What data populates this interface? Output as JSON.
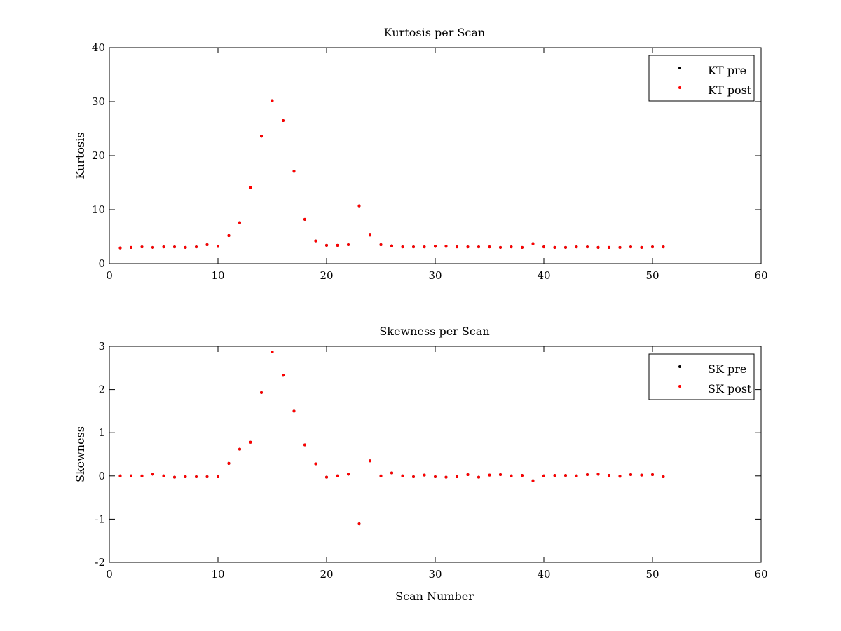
{
  "colors": {
    "pre": "#000000",
    "post": "#ff0000",
    "axes": "#000000",
    "background": "#ffffff"
  },
  "chart_data": [
    {
      "type": "scatter",
      "title": "Kurtosis per Scan",
      "xlabel": "",
      "ylabel": "Kurtosis",
      "xlim": [
        0,
        60
      ],
      "ylim": [
        0,
        40
      ],
      "xticks": [
        0,
        10,
        20,
        30,
        40,
        50,
        60
      ],
      "yticks": [
        0,
        10,
        20,
        30,
        40
      ],
      "grid": false,
      "legend_position": "top-right",
      "legend": [
        "KT pre",
        "KT post"
      ],
      "x": [
        1,
        2,
        3,
        4,
        5,
        6,
        7,
        8,
        9,
        10,
        11,
        12,
        13,
        14,
        15,
        16,
        17,
        18,
        19,
        20,
        21,
        22,
        23,
        24,
        25,
        26,
        27,
        28,
        29,
        30,
        31,
        32,
        33,
        34,
        35,
        36,
        37,
        38,
        39,
        40,
        41,
        42,
        43,
        44,
        45,
        46,
        47,
        48,
        49,
        50,
        51
      ],
      "series": [
        {
          "name": "KT pre",
          "values": [
            2.9,
            3.0,
            3.1,
            3.0,
            3.1,
            3.1,
            3.0,
            3.1,
            3.5,
            3.2,
            5.2,
            7.6,
            14.1,
            23.6,
            30.2,
            26.5,
            17.1,
            8.2,
            4.2,
            3.4,
            3.4,
            3.5,
            10.7,
            5.3,
            3.5,
            3.3,
            3.1,
            3.1,
            3.1,
            3.2,
            3.2,
            3.1,
            3.1,
            3.1,
            3.1,
            3.0,
            3.1,
            3.0,
            3.7,
            3.1,
            3.0,
            3.0,
            3.1,
            3.1,
            3.0,
            3.0,
            3.0,
            3.1,
            3.0,
            3.1,
            3.1
          ]
        },
        {
          "name": "KT post",
          "values": [
            2.9,
            3.0,
            3.1,
            3.0,
            3.1,
            3.1,
            3.0,
            3.1,
            3.5,
            3.2,
            5.2,
            7.6,
            14.1,
            23.6,
            30.2,
            26.5,
            17.1,
            8.2,
            4.2,
            3.4,
            3.4,
            3.5,
            10.7,
            5.3,
            3.5,
            3.3,
            3.1,
            3.1,
            3.1,
            3.2,
            3.2,
            3.1,
            3.1,
            3.1,
            3.1,
            3.0,
            3.1,
            3.0,
            3.7,
            3.1,
            3.0,
            3.0,
            3.1,
            3.1,
            3.0,
            3.0,
            3.0,
            3.1,
            3.0,
            3.1,
            3.1
          ]
        }
      ]
    },
    {
      "type": "scatter",
      "title": "Skewness per Scan",
      "xlabel": "Scan Number",
      "ylabel": "Skewness",
      "xlim": [
        0,
        60
      ],
      "ylim": [
        -2,
        3
      ],
      "xticks": [
        0,
        10,
        20,
        30,
        40,
        50,
        60
      ],
      "yticks": [
        -2,
        -1,
        0,
        1,
        2,
        3
      ],
      "grid": false,
      "legend_position": "top-right",
      "legend": [
        "SK pre",
        "SK post"
      ],
      "x": [
        1,
        2,
        3,
        4,
        5,
        6,
        7,
        8,
        9,
        10,
        11,
        12,
        13,
        14,
        15,
        16,
        17,
        18,
        19,
        20,
        21,
        22,
        23,
        24,
        25,
        26,
        27,
        28,
        29,
        30,
        31,
        32,
        33,
        34,
        35,
        36,
        37,
        38,
        39,
        40,
        41,
        42,
        43,
        44,
        45,
        46,
        47,
        48,
        49,
        50,
        51
      ],
      "series": [
        {
          "name": "SK pre",
          "values": [
            0.0,
            0.0,
            0.0,
            0.04,
            0.0,
            -0.03,
            -0.02,
            -0.02,
            -0.02,
            -0.02,
            0.29,
            0.62,
            0.78,
            1.93,
            2.87,
            2.33,
            1.5,
            0.72,
            0.28,
            -0.03,
            0.0,
            0.04,
            -1.11,
            0.35,
            0.0,
            0.07,
            0.0,
            -0.02,
            0.02,
            -0.02,
            -0.03,
            -0.02,
            0.03,
            -0.03,
            0.02,
            0.03,
            0.0,
            0.01,
            -0.11,
            0.0,
            0.01,
            0.01,
            0.0,
            0.03,
            0.04,
            0.01,
            -0.01,
            0.03,
            0.02,
            0.03,
            -0.02
          ]
        },
        {
          "name": "SK post",
          "values": [
            0.0,
            0.0,
            0.0,
            0.04,
            0.0,
            -0.03,
            -0.02,
            -0.02,
            -0.02,
            -0.02,
            0.29,
            0.62,
            0.78,
            1.93,
            2.87,
            2.33,
            1.5,
            0.72,
            0.28,
            -0.03,
            0.0,
            0.04,
            -1.11,
            0.35,
            0.0,
            0.07,
            0.0,
            -0.02,
            0.02,
            -0.02,
            -0.03,
            -0.02,
            0.03,
            -0.03,
            0.02,
            0.03,
            0.0,
            0.01,
            -0.11,
            0.0,
            0.01,
            0.01,
            0.0,
            0.03,
            0.04,
            0.01,
            -0.01,
            0.03,
            0.02,
            0.03,
            -0.02
          ]
        }
      ]
    }
  ]
}
